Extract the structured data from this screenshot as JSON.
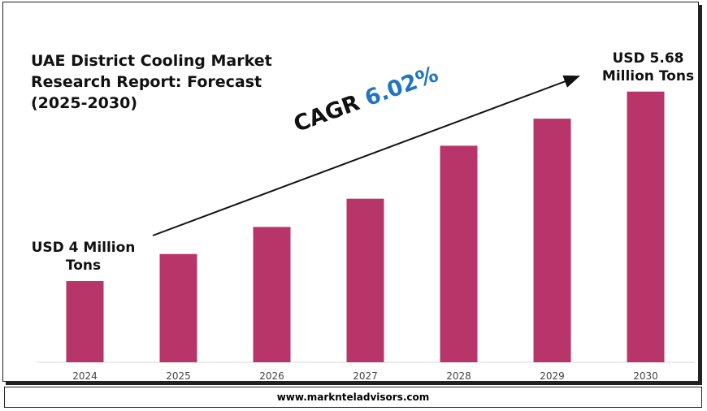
{
  "chart_data": {
    "type": "bar",
    "title": "UAE District Cooling Market Research Report: Forecast (2025-2030)",
    "categories": [
      "2024",
      "2025",
      "2026",
      "2027",
      "2028",
      "2029",
      "2030"
    ],
    "values": [
      4,
      4.24,
      4.48,
      4.73,
      5.2,
      5.44,
      5.68
    ],
    "value_labels": [
      "USD 4 Million Tons",
      null,
      null,
      null,
      null,
      null,
      "USD 5.68 Million Tons"
    ],
    "color": "#b83569",
    "ylim": [
      3.28,
      6.06
    ],
    "annotation": {
      "label": "CAGR",
      "value": "6.02%"
    },
    "footer": "www.marknteladvisors.com"
  }
}
